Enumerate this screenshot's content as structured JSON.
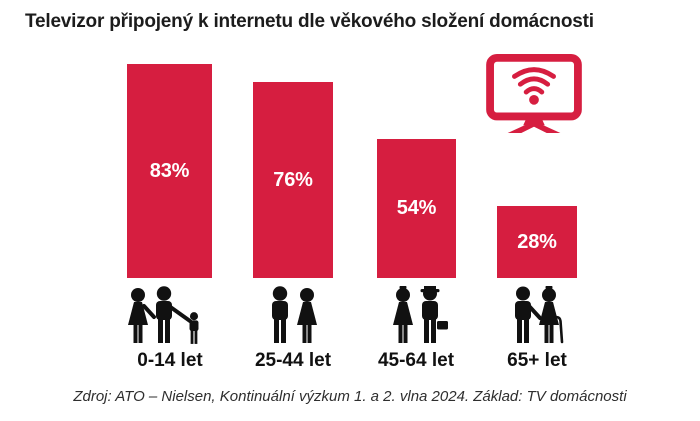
{
  "title": "Televizor připojený k internetu dle věkového složení domácnosti",
  "source_note": "Zdroj: ATO – Nielsen, Kontinuální výzkum 1. a 2. vlna 2024. Základ: TV domácnosti",
  "colors": {
    "bar_red": "#d61e40",
    "icon_red": "#d61e40",
    "value_text": "#ffffff",
    "title_text": "#1c1c1c",
    "pictogram_black": "#111111",
    "source_text": "#2e2e2e",
    "background": "#ffffff"
  },
  "chart_data": {
    "type": "bar",
    "title": "Televizor připojený k internetu dle věkového složení domácnosti",
    "categories": [
      "0-14 let",
      "25-44 let",
      "45-64 let",
      "65+ let"
    ],
    "values": [
      83,
      76,
      54,
      28
    ],
    "value_labels": [
      "83%",
      "76%",
      "54%",
      "28%"
    ],
    "unit": "%",
    "ylim": [
      0,
      100
    ],
    "xlabel": "",
    "ylabel": "",
    "grid": false,
    "axes_hidden": true,
    "legend": "none",
    "bar_color": "#d61e40",
    "value_label_position": "center-inside",
    "category_icons": [
      "family-with-child-icon",
      "adult-couple-icon",
      "middle-aged-couple-with-hat-and-briefcase-icon",
      "senior-couple-with-cane-icon"
    ]
  },
  "icons": {
    "tv_wifi": "tv-with-wifi-icon"
  }
}
